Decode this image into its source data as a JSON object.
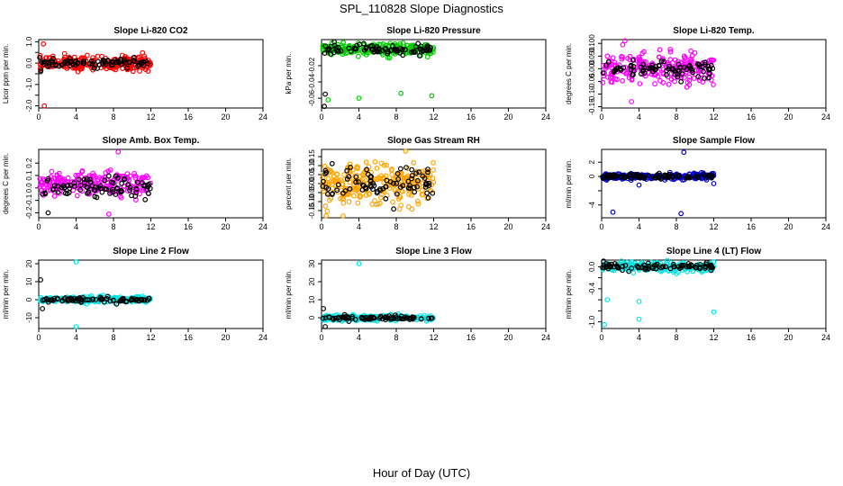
{
  "title": "SPL_110828  Slope Diagnostics",
  "xlabel": "Hour of Day (UTC)",
  "chart_data": [
    {
      "type": "scatter",
      "title": "Slope Li-820 CO2",
      "ylabel": "Licor ppm per min.",
      "xlim": [
        0,
        24
      ],
      "xticks": [
        0,
        4,
        8,
        12,
        16,
        20,
        24
      ],
      "ylim": [
        -2.1,
        1.1
      ],
      "yticks": [
        -2.0,
        -1.5,
        -1.0,
        -0.5,
        0.0,
        0.5,
        1.0
      ],
      "ytick_labels": [
        "-2.0",
        "",
        "-1.0",
        "",
        "0.0",
        "",
        "1.0"
      ],
      "series": [
        {
          "name": "primary",
          "color": "#ff0000",
          "center": 0.0,
          "spread": 0.28,
          "count": 230
        },
        {
          "name": "reference",
          "color": "#000000",
          "center": 0.0,
          "spread": 0.16,
          "count": 85
        }
      ],
      "outliers": [
        {
          "x": 0.5,
          "y": 0.9,
          "color": "#ff0000"
        },
        {
          "x": 0.6,
          "y": -2.0,
          "color": "#ff0000"
        },
        {
          "x": 0.2,
          "y": -0.4,
          "color": "#000000"
        }
      ]
    },
    {
      "type": "scatter",
      "title": "Slope Li-820 Pressure",
      "ylabel": "kPa per min.",
      "xlim": [
        0,
        24
      ],
      "xticks": [
        0,
        4,
        8,
        12,
        16,
        20,
        24
      ],
      "ylim": [
        -0.072,
        0.012
      ],
      "yticks": [
        -0.06,
        -0.04,
        -0.02
      ],
      "ytick_labels": [
        "-0.06",
        "-0.04",
        "-0.02"
      ],
      "series": [
        {
          "name": "primary",
          "color": "#00cc00",
          "center": 0.0,
          "spread": 0.006,
          "count": 220
        },
        {
          "name": "reference",
          "color": "#000000",
          "center": 0.0,
          "spread": 0.005,
          "count": 85
        }
      ],
      "outliers": [
        {
          "x": 0.4,
          "y": -0.055,
          "color": "#000000"
        },
        {
          "x": 0.3,
          "y": -0.07,
          "color": "#000000"
        },
        {
          "x": 0.7,
          "y": -0.062,
          "color": "#00cc00"
        },
        {
          "x": 4.0,
          "y": -0.06,
          "color": "#00cc00"
        },
        {
          "x": 8.5,
          "y": -0.054,
          "color": "#00cc00"
        },
        {
          "x": 11.8,
          "y": -0.057,
          "color": "#00cc00"
        }
      ]
    },
    {
      "type": "scatter",
      "title": "Slope Li-820 Temp.",
      "ylabel": "degrees C per min.",
      "xlim": [
        0,
        24
      ],
      "xticks": [
        0,
        4,
        8,
        12,
        16,
        20,
        24
      ],
      "ylim": [
        -0.155,
        0.115
      ],
      "yticks": [
        -0.15,
        -0.1,
        -0.05,
        0.0,
        0.05,
        0.1
      ],
      "ytick_labels": [
        "-0.15",
        "-0.10",
        "-0.05",
        "0.000",
        "0.050",
        "0.100"
      ],
      "series": [
        {
          "name": "primary",
          "color": "#ff00ff",
          "center": 0.0,
          "spread": 0.05,
          "count": 220
        },
        {
          "name": "reference",
          "color": "#000000",
          "center": 0.0,
          "spread": 0.03,
          "count": 85
        }
      ],
      "outliers": [
        {
          "x": 2.5,
          "y": 0.11,
          "color": "#ff00ff"
        },
        {
          "x": 3.2,
          "y": -0.13,
          "color": "#ff00ff"
        }
      ]
    },
    {
      "type": "scatter",
      "title": "Slope Amb. Box Temp.",
      "ylabel": "degrees C per min.",
      "xlim": [
        0,
        24
      ],
      "xticks": [
        0,
        4,
        8,
        12,
        16,
        20,
        24
      ],
      "ylim": [
        -0.24,
        0.31
      ],
      "yticks": [
        -0.2,
        -0.1,
        0.0,
        0.1,
        0.2
      ],
      "ytick_labels": [
        "-0.2",
        "-0.1",
        "0.0",
        "0.1",
        "0.2"
      ],
      "series": [
        {
          "name": "primary",
          "color": "#ff00ff",
          "center": 0.03,
          "spread": 0.08,
          "count": 220
        },
        {
          "name": "reference",
          "color": "#000000",
          "center": 0.0,
          "spread": 0.07,
          "count": 85
        }
      ],
      "outliers": [
        {
          "x": 8.5,
          "y": 0.29,
          "color": "#ff00ff"
        },
        {
          "x": 1.0,
          "y": -0.2,
          "color": "#000000"
        },
        {
          "x": 7.5,
          "y": -0.21,
          "color": "#ff00ff"
        }
      ]
    },
    {
      "type": "scatter",
      "title": "Slope Gas Stream RH",
      "ylabel": "percent per min.",
      "xlim": [
        0,
        24
      ],
      "xticks": [
        0,
        4,
        8,
        12,
        16,
        20,
        24
      ],
      "ylim": [
        -0.19,
        0.19
      ],
      "yticks": [
        -0.15,
        -0.1,
        -0.05,
        0.0,
        0.05,
        0.1,
        0.15
      ],
      "ytick_labels": [
        "-0.15",
        "-0.10",
        "-0.05",
        "0.00",
        "0.05",
        "0.10",
        "0.15"
      ],
      "series": [
        {
          "name": "primary",
          "color": "#ffa500",
          "center": 0.0,
          "spread": 0.09,
          "count": 260
        },
        {
          "name": "reference",
          "color": "#000000",
          "center": 0.0,
          "spread": 0.08,
          "count": 85
        }
      ],
      "outliers": [
        {
          "x": 2.3,
          "y": -0.18,
          "color": "#ffa500"
        },
        {
          "x": 9.0,
          "y": 0.18,
          "color": "#ffa500"
        }
      ]
    },
    {
      "type": "scatter",
      "title": "Slope Sample Flow",
      "ylabel": "ml/min per min.",
      "xlim": [
        0,
        24
      ],
      "xticks": [
        0,
        4,
        8,
        12,
        16,
        20,
        24
      ],
      "ylim": [
        -5.8,
        3.8
      ],
      "yticks": [
        -4,
        -2,
        0,
        2
      ],
      "ytick_labels": [
        "-4",
        "",
        "0",
        "2"
      ],
      "series": [
        {
          "name": "primary",
          "color": "#0000cc",
          "center": 0.0,
          "spread": 0.35,
          "count": 220
        },
        {
          "name": "reference",
          "color": "#000000",
          "center": 0.0,
          "spread": 0.3,
          "count": 85
        }
      ],
      "outliers": [
        {
          "x": 8.8,
          "y": 3.4,
          "color": "#0000cc"
        },
        {
          "x": 1.2,
          "y": -5.0,
          "color": "#0000cc"
        },
        {
          "x": 8.5,
          "y": -5.2,
          "color": "#0000cc"
        },
        {
          "x": 4.0,
          "y": -1.2,
          "color": "#0000cc"
        },
        {
          "x": 12.0,
          "y": -1.0,
          "color": "#0000cc"
        }
      ]
    },
    {
      "type": "scatter",
      "title": "Slope Line 2 Flow",
      "ylabel": "ml/min per min.",
      "xlim": [
        0,
        24
      ],
      "xticks": [
        0,
        4,
        8,
        12,
        16,
        20,
        24
      ],
      "ylim": [
        -16,
        22
      ],
      "yticks": [
        -10,
        0,
        10,
        20
      ],
      "ytick_labels": [
        "-10",
        "0",
        "10",
        "20"
      ],
      "series": [
        {
          "name": "primary",
          "color": "#00e5e5",
          "center": 0.0,
          "spread": 1.3,
          "count": 220
        },
        {
          "name": "reference",
          "color": "#000000",
          "center": 0.0,
          "spread": 1.2,
          "count": 85
        }
      ],
      "outliers": [
        {
          "x": 4.0,
          "y": 21.0,
          "color": "#00e5e5"
        },
        {
          "x": 4.0,
          "y": -15.0,
          "color": "#00e5e5"
        },
        {
          "x": 0.2,
          "y": 11.0,
          "color": "#000000"
        },
        {
          "x": 0.4,
          "y": -5.0,
          "color": "#000000"
        }
      ]
    },
    {
      "type": "scatter",
      "title": "Slope Line 3 Flow",
      "ylabel": "ml/min per min.",
      "xlim": [
        0,
        24
      ],
      "xticks": [
        0,
        4,
        8,
        12,
        16,
        20,
        24
      ],
      "ylim": [
        -6,
        32
      ],
      "yticks": [
        0,
        10,
        20,
        30
      ],
      "ytick_labels": [
        "0",
        "10",
        "20",
        "30"
      ],
      "series": [
        {
          "name": "primary",
          "color": "#00e5e5",
          "center": 0.0,
          "spread": 1.2,
          "count": 220
        },
        {
          "name": "reference",
          "color": "#000000",
          "center": 0.0,
          "spread": 1.0,
          "count": 85
        }
      ],
      "outliers": [
        {
          "x": 4.0,
          "y": 30.0,
          "color": "#00e5e5"
        },
        {
          "x": 0.2,
          "y": 5.0,
          "color": "#000000"
        },
        {
          "x": 0.4,
          "y": -5.0,
          "color": "#000000"
        }
      ]
    },
    {
      "type": "scatter",
      "title": "Slope Line 4 (LT) Flow",
      "ylabel": "ml/min per min.",
      "xlim": [
        0,
        24
      ],
      "xticks": [
        0,
        4,
        8,
        12,
        16,
        20,
        24
      ],
      "ylim": [
        -1.12,
        0.12
      ],
      "yticks": [
        -1.0,
        -0.8,
        -0.6,
        -0.4,
        -0.2,
        0.0
      ],
      "ytick_labels": [
        "-1.0",
        "",
        "",
        "-0.4",
        "",
        "0.0"
      ],
      "series": [
        {
          "name": "primary",
          "color": "#00e5e5",
          "center": 0.0,
          "spread": 0.07,
          "count": 220
        },
        {
          "name": "reference",
          "color": "#000000",
          "center": 0.0,
          "spread": 0.05,
          "count": 85
        }
      ],
      "outliers": [
        {
          "x": 0.3,
          "y": -1.05,
          "color": "#00e5e5"
        },
        {
          "x": 4.0,
          "y": -0.95,
          "color": "#00e5e5"
        },
        {
          "x": 0.6,
          "y": -0.6,
          "color": "#00e5e5"
        },
        {
          "x": 4.0,
          "y": -0.63,
          "color": "#00e5e5"
        },
        {
          "x": 12.0,
          "y": -0.82,
          "color": "#00e5e5"
        },
        {
          "x": 0.2,
          "y": 0.1,
          "color": "#000000"
        }
      ]
    }
  ]
}
